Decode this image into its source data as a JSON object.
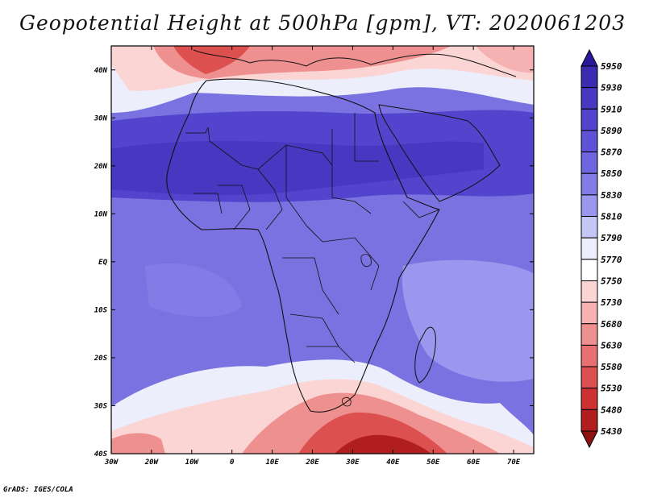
{
  "title": "Geopotential Height at 500hPa [gpm], VT: 2020061203",
  "credit": "GrADS: IGES/COLA",
  "map": {
    "region": "Africa",
    "lon_range": [
      -30,
      75
    ],
    "lat_range": [
      -40,
      45
    ],
    "lon_ticks": [
      "30W",
      "20W",
      "10W",
      "0",
      "10E",
      "20E",
      "30E",
      "40E",
      "50E",
      "60E",
      "70E"
    ],
    "lat_ticks": [
      "40N",
      "30N",
      "20N",
      "10N",
      "EQ",
      "10S",
      "20S",
      "30S",
      "40S"
    ],
    "variable": "500hPa geopotential height",
    "units": "gpm",
    "valid_time": "2020061203"
  },
  "legend": {
    "levels": [
      "5950",
      "5930",
      "5910",
      "5890",
      "5870",
      "5850",
      "5830",
      "5810",
      "5790",
      "5770",
      "5750",
      "5730",
      "5680",
      "5630",
      "5580",
      "5530",
      "5480",
      "5430"
    ],
    "colors": [
      "#2a1a9a",
      "#3a2bb0",
      "#4638c0",
      "#5244cc",
      "#5e52d6",
      "#6e66de",
      "#827ce6",
      "#9a98ee",
      "#c4c6f6",
      "#eceefc",
      "#ffffff",
      "#fbd4d4",
      "#f6b2b2",
      "#ef9090",
      "#e77070",
      "#dd5050",
      "#cc3232",
      "#b01e1e",
      "#8f1212"
    ]
  }
}
